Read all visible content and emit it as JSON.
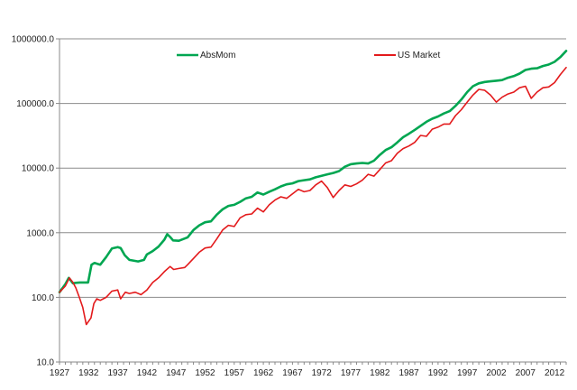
{
  "chart_data": {
    "type": "line",
    "title": "",
    "xlabel": "",
    "ylabel": "",
    "y_scale": "log",
    "ylim": [
      10,
      1000000
    ],
    "xlim": [
      1927,
      2014
    ],
    "grid": "horizontal",
    "legend_placement": "top, inside plot",
    "y_ticks": [
      "10.0",
      "100.0",
      "1000.0",
      "10000.0",
      "100000.0",
      "1000000.0"
    ],
    "y_tick_values": [
      10,
      100,
      1000,
      10000,
      100000,
      1000000
    ],
    "x_ticks": [
      "1927",
      "1932",
      "1937",
      "1942",
      "1947",
      "1952",
      "1957",
      "1962",
      "1967",
      "1972",
      "1977",
      "1982",
      "1987",
      "1992",
      "1997",
      "2002",
      "2007",
      "2012"
    ],
    "x_tick_values": [
      1927,
      1932,
      1937,
      1942,
      1947,
      1952,
      1957,
      1962,
      1967,
      1972,
      1977,
      1982,
      1987,
      1992,
      1997,
      2002,
      2007,
      2012
    ],
    "series": [
      {
        "name": "AbsMom",
        "color": "#00a651",
        "x": [
          1927,
          1928,
          1928.6,
          1929.3,
          1929.8,
          1930.5,
          1931.5,
          1931.9,
          1932.5,
          1933,
          1934,
          1935,
          1936,
          1937,
          1937.5,
          1938.2,
          1939,
          1940.5,
          1941.5,
          1942,
          1943,
          1944,
          1945,
          1945.5,
          1946,
          1946.5,
          1947.5,
          1948.3,
          1949,
          1950,
          1951,
          1952,
          1953,
          1954,
          1955,
          1956,
          1957,
          1958,
          1959,
          1960,
          1961,
          1962,
          1963,
          1964,
          1965,
          1966,
          1967,
          1968,
          1969,
          1970,
          1971,
          1972,
          1973,
          1974,
          1975,
          1976,
          1977,
          1978,
          1979,
          1980,
          1981,
          1982,
          1983,
          1984,
          1985,
          1986,
          1987,
          1988,
          1989,
          1990,
          1991,
          1992,
          1993,
          1994,
          1995,
          1996,
          1997,
          1998,
          1999,
          2000,
          2001,
          2002,
          2003,
          2004,
          2005,
          2006,
          2007,
          2008,
          2009,
          2010,
          2011,
          2012,
          2013,
          2014
        ],
        "values": [
          120,
          160,
          200,
          165,
          168,
          170,
          170,
          170,
          320,
          340,
          320,
          420,
          570,
          600,
          580,
          450,
          380,
          360,
          380,
          460,
          520,
          610,
          780,
          950,
          860,
          760,
          750,
          800,
          850,
          1100,
          1300,
          1450,
          1500,
          1900,
          2300,
          2600,
          2700,
          3000,
          3400,
          3600,
          4200,
          3900,
          4300,
          4700,
          5200,
          5600,
          5800,
          6300,
          6500,
          6700,
          7200,
          7600,
          8000,
          8400,
          9000,
          10500,
          11500,
          11800,
          12000,
          11800,
          13000,
          16000,
          19000,
          21000,
          25000,
          30000,
          34000,
          39000,
          45000,
          52000,
          58000,
          63000,
          70000,
          76000,
          92000,
          115000,
          150000,
          185000,
          205000,
          215000,
          220000,
          225000,
          230000,
          250000,
          265000,
          290000,
          330000,
          345000,
          350000,
          380000,
          400000,
          440000,
          520000,
          650000
        ]
      },
      {
        "name": "US Market",
        "color": "#e31a1c",
        "x": [
          1927,
          1928,
          1928.7,
          1929.3,
          1929.8,
          1930.4,
          1931,
          1931.6,
          1932.4,
          1932.9,
          1933.4,
          1934,
          1935,
          1936,
          1937,
          1937.5,
          1938.3,
          1939,
          1940,
          1941,
          1942,
          1943,
          1944,
          1945,
          1946,
          1946.6,
          1947.5,
          1948.5,
          1949,
          1950,
          1951,
          1952,
          1953,
          1954,
          1955,
          1956,
          1957,
          1958,
          1959,
          1960,
          1961,
          1962,
          1963,
          1964,
          1965,
          1966,
          1967,
          1968,
          1969,
          1970,
          1971,
          1972,
          1973,
          1974,
          1975,
          1976,
          1977,
          1978,
          1979,
          1980,
          1981,
          1982,
          1983,
          1984,
          1985,
          1986,
          1987,
          1988,
          1989,
          1990,
          1991,
          1992,
          1993,
          1994,
          1995,
          1996,
          1997,
          1998,
          1999,
          2000,
          2001,
          2002,
          2003,
          2004,
          2005,
          2006,
          2007,
          2008,
          2009,
          2010,
          2011,
          2012,
          2013,
          2014
        ],
        "values": [
          120,
          150,
          200,
          170,
          140,
          100,
          70,
          38,
          48,
          80,
          95,
          90,
          100,
          125,
          130,
          95,
          120,
          115,
          120,
          110,
          130,
          170,
          200,
          250,
          300,
          270,
          280,
          290,
          320,
          400,
          500,
          580,
          600,
          800,
          1100,
          1300,
          1250,
          1700,
          1900,
          1950,
          2400,
          2100,
          2700,
          3200,
          3600,
          3400,
          4000,
          4700,
          4300,
          4500,
          5500,
          6300,
          5000,
          3500,
          4500,
          5500,
          5200,
          5700,
          6500,
          8000,
          7500,
          9500,
          12000,
          13000,
          17000,
          20000,
          22000,
          25000,
          32000,
          31000,
          40000,
          43000,
          48000,
          48000,
          65000,
          80000,
          105000,
          135000,
          165000,
          160000,
          135000,
          105000,
          125000,
          140000,
          150000,
          175000,
          185000,
          120000,
          150000,
          175000,
          180000,
          210000,
          280000,
          360000
        ]
      }
    ]
  }
}
